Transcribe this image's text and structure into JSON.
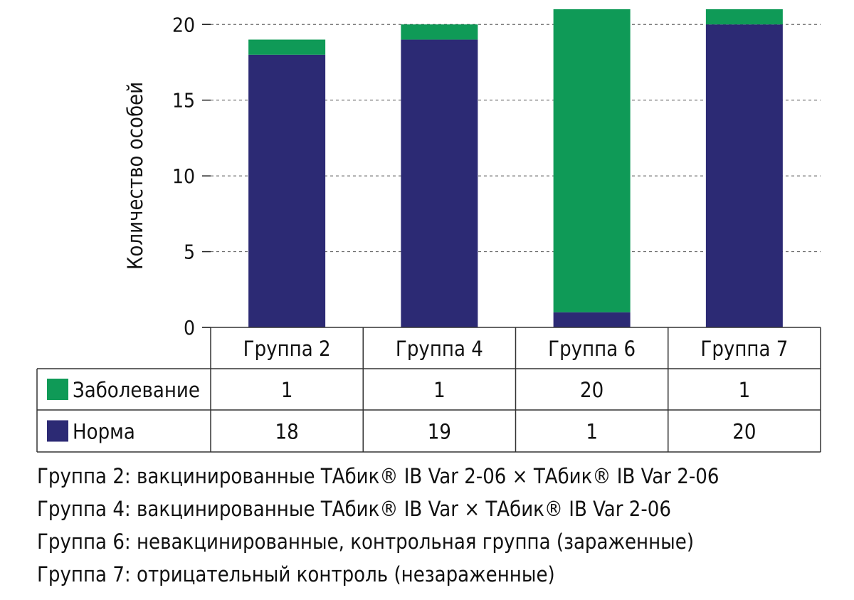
{
  "chart_data": {
    "type": "bar",
    "stacked": true,
    "ylabel": "Количество особей",
    "ylim": [
      0,
      21
    ],
    "y_ticks": [
      "0",
      "5",
      "10",
      "15",
      "20"
    ],
    "grid": "dashed horizontal",
    "categories": [
      "Группа 2",
      "Группа 4",
      "Группа 6",
      "Группа 7"
    ],
    "series": [
      {
        "name": "Норма",
        "color": "#2c2a74",
        "values": [
          18,
          19,
          1,
          20
        ],
        "labels": [
          "18",
          "19",
          "1",
          "20"
        ]
      },
      {
        "name": "Заболевание",
        "color": "#0f9a57",
        "values": [
          1,
          1,
          20,
          1
        ],
        "labels": [
          "1",
          "1",
          "20",
          "1"
        ]
      }
    ]
  },
  "notes": [
    "Группа 2: вакцинированные ТАбик® IB Var 2-06 × ТАбик® IB Var 2-06",
    "Группа 4: вакцинированные ТАбик® IB Var × ТАбик® IB Var 2-06",
    "Группа 6: невакцинированные, контрольная группа (зараженные)",
    "Группа 7: отрицательный контроль (незараженные)"
  ]
}
